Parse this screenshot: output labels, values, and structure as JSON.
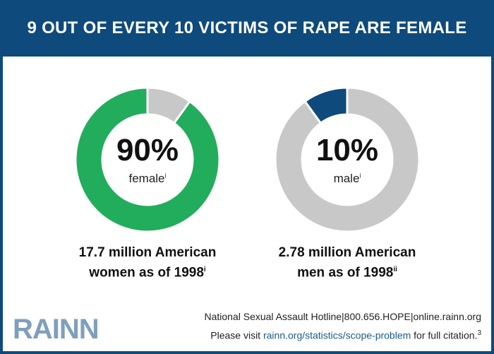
{
  "header": {
    "title": "9 OUT OF EVERY 10 VICTIMS OF RAPE ARE FEMALE"
  },
  "colors": {
    "navy": "#0e4a7b",
    "green": "#22ad5c",
    "gray": "#c8c8c8",
    "logo": "#7f9fbc"
  },
  "chart_data": [
    {
      "type": "pie",
      "style": "donut",
      "slices": [
        {
          "label": "female",
          "value": 90,
          "color": "#22ad5c"
        },
        {
          "label": "other",
          "value": 10,
          "color": "#c8c8c8"
        }
      ],
      "center_value": "90%",
      "center_label": "female",
      "center_note": "i",
      "caption_line1": "17.7 million American",
      "caption_line2": "women as of 1998",
      "caption_note": "i"
    },
    {
      "type": "pie",
      "style": "donut",
      "slices": [
        {
          "label": "male",
          "value": 10,
          "color": "#0e4a7b"
        },
        {
          "label": "other",
          "value": 90,
          "color": "#c8c8c8"
        }
      ],
      "center_value": "10%",
      "center_label": "male",
      "center_note": "i",
      "caption_line1": "2.78 million American",
      "caption_line2": "men as of 1998",
      "caption_note": "ii"
    }
  ],
  "footer": {
    "logo": "RAINN",
    "line1": "National Sexual Assault Hotline|800.656.HOPE|online.rainn.org",
    "line2_prefix": "Please visit ",
    "line2_link": "rainn.org/statistics/scope-problem",
    "line2_suffix": " for full citation.",
    "line2_note": "3"
  }
}
